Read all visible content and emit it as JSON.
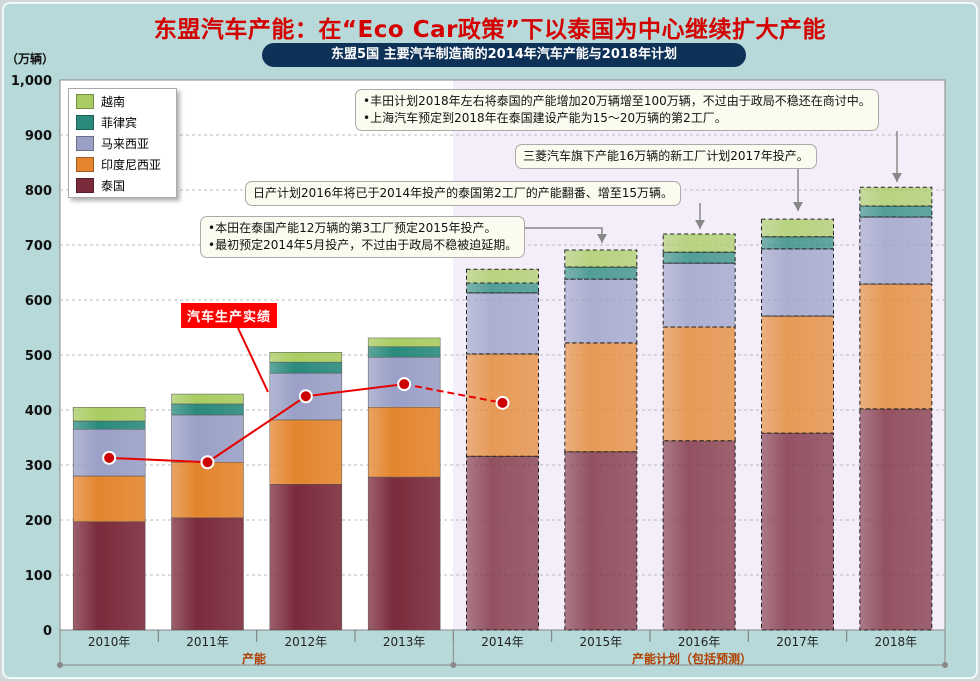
{
  "title": "东盟汽车产能：在“Eco Car政策”下以泰国为中心继续扩大产能",
  "subtitle": "东盟5国  主要汽车制造商的2014年汽车产能与2018年计划",
  "unit": "（万辆）",
  "colors": {
    "泰国": "#7b2b3b",
    "印度尼西亚": "#e4852e",
    "马来西亚": "#9aa0c6",
    "菲律宾": "#2a8a7c",
    "越南": "#a9cc62",
    "line": "#e80000"
  },
  "chart_data": {
    "type": "bar",
    "stacked": true,
    "ylim": [
      0,
      1000
    ],
    "yticks": [
      "0",
      "100",
      "200",
      "300",
      "400",
      "500",
      "600",
      "700",
      "800",
      "900",
      "1,000"
    ],
    "ytick_values": [
      0,
      100,
      200,
      300,
      400,
      500,
      600,
      700,
      800,
      900,
      1000
    ],
    "categories": [
      "2010年",
      "2011年",
      "2012年",
      "2013年",
      "2014年",
      "2015年",
      "2016年",
      "2017年",
      "2018年"
    ],
    "forecast_from_index": 4,
    "series": [
      {
        "name": "泰国",
        "values": [
          197,
          204,
          265,
          278,
          316,
          324,
          344,
          358,
          402
        ]
      },
      {
        "name": "印度尼西亚",
        "values": [
          83,
          101,
          117,
          127,
          186,
          198,
          207,
          213,
          227
        ]
      },
      {
        "name": "马来西亚",
        "values": [
          85,
          86,
          85,
          91,
          111,
          116,
          116,
          122,
          122
        ]
      },
      {
        "name": "菲律宾",
        "values": [
          15,
          20,
          20,
          19,
          18,
          22,
          20,
          22,
          20
        ]
      },
      {
        "name": "越南",
        "values": [
          25,
          18,
          18,
          16,
          25,
          31,
          33,
          32,
          34
        ]
      }
    ],
    "line": {
      "name": "汽车生产实绩",
      "values": [
        313,
        305,
        425,
        447,
        413
      ]
    },
    "legend_order": [
      "越南",
      "菲律宾",
      "马来西亚",
      "印度尼西亚",
      "泰国"
    ],
    "legend_position": "top-left",
    "group_labels": [
      "产能",
      "产能计划（包括预测）"
    ]
  },
  "notes": {
    "toyota": [
      "•丰田计划2018年左右将泰国的产能增加20万辆增至100万辆，不过由于政局不稳还在商讨中。",
      "•上海汽车预定到2018年在泰国建设产能为15～20万辆的第2工厂。"
    ],
    "mitsubishi": "三菱汽车旗下产能16万辆的新工厂计划2017年投产。",
    "nissan": "日产计划2016年将已于2014年投产的泰国第2工厂的产能翻番、增至15万辆。",
    "honda": [
      "•本田在泰国产能12万辆的第3工厂预定2015年投产。",
      "•最初预定2014年5月投产，不过由于政局不稳被迫延期。"
    ]
  }
}
